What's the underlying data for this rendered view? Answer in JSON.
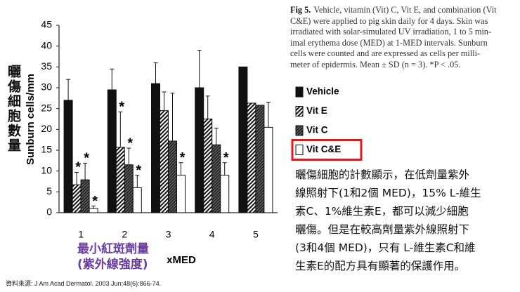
{
  "chart_data": {
    "type": "grouped-bar",
    "y_label": "Sunburn cells/mm",
    "x_label": "xMED",
    "categories": [
      "1",
      "2",
      "3",
      "4",
      "5"
    ],
    "ylim": [
      0,
      45
    ],
    "yticks": [
      0,
      5,
      10,
      15,
      20,
      25,
      30,
      35,
      40,
      45
    ],
    "star_label": "*",
    "series": [
      {
        "name": "Vehicle",
        "color": "#111111",
        "pattern": "solid",
        "values": [
          27,
          29.5,
          31,
          30,
          35
        ],
        "errors": [
          5,
          5,
          5,
          9,
          null
        ],
        "significant": [
          false,
          false,
          false,
          false,
          false
        ]
      },
      {
        "name": "Vit E",
        "color": "#111111",
        "pattern": "hatch",
        "values": [
          6.7,
          15.7,
          24.5,
          22.5,
          26.3
        ],
        "errors": [
          3,
          8.5,
          4.5,
          5.5,
          null
        ],
        "significant": [
          true,
          true,
          false,
          false,
          false
        ]
      },
      {
        "name": "Vit C",
        "color": "#333333",
        "pattern": "dense-hatch",
        "values": [
          7.9,
          11.5,
          17.2,
          16.3,
          25.8
        ],
        "errors": [
          4,
          4,
          11.5,
          4,
          null
        ],
        "significant": [
          true,
          true,
          false,
          false,
          false
        ]
      },
      {
        "name": "Vit C&E",
        "color": "#ffffff",
        "pattern": "open",
        "values": [
          1,
          6,
          9,
          9,
          20.5
        ],
        "errors": [
          0.6,
          3,
          3,
          3,
          6
        ],
        "significant": [
          true,
          true,
          true,
          true,
          false
        ]
      }
    ],
    "legend_highlight": "#e0191b"
  },
  "caption": {
    "label": "Fig 5.",
    "lines": [
      "Vehicle, vitamin (Vit) C, Vit E, and combination (Vit",
      "C&E) were applied to pig skin daily for 4 days. Skin was",
      "irradiated with solar-simulated UV irradiation, 1 to 5 min-",
      "imal erythema dose (MED) at 1-MED intervals. Sunburn",
      "cells were counted and are expressed as cells per milli-",
      "meter of epidermis. Mean ± SD (n = 3). *P < .05."
    ]
  },
  "annotations": {
    "y_label_zh": "曬傷細胞數量",
    "x_label_zh": [
      "最小紅斑劑量",
      "(紫外線強度)"
    ],
    "note": [
      "曬傷細胞的計數顯示，在低劑量紫外",
      "線照射下(1和2個 MED)，15% L-維生",
      "素C、1%維生素E，都可以減少細胞",
      "曬傷。但是在較高劑量紫外線照射下",
      "(3和4個  MED)，只有  L-維生素C和維",
      "生素E的配方具有顯著的保護作用。"
    ],
    "source": "資料來源: J Am Acad Dermatol. 2003 Jun;48(6):866-74."
  }
}
